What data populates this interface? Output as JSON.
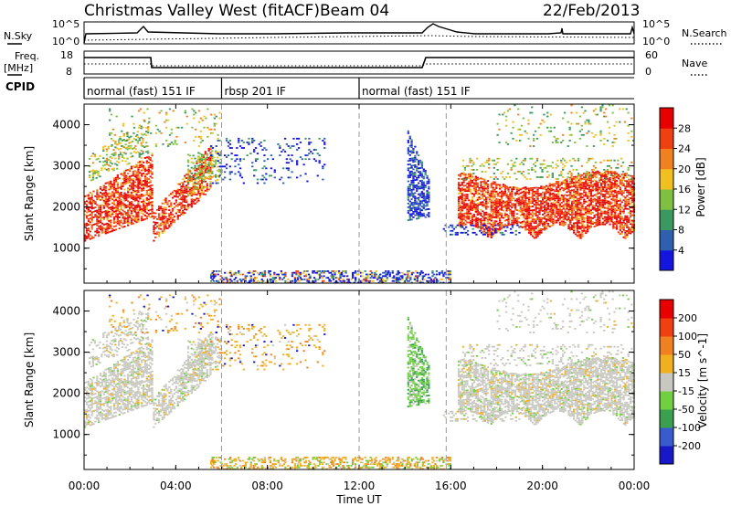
{
  "header": {
    "title": "Christmas Valley West (fitACF)",
    "beam": "Beam 04",
    "date": "22/Feb/2013"
  },
  "panels": {
    "nsky_label": "N.Sky",
    "nsky_ticks": [
      "10^5",
      "10^0"
    ],
    "nsearch_label": "N.Search",
    "nsearch_ticks": [
      "10^5",
      "10^0"
    ],
    "freq_label_1": "Freq.",
    "freq_label_2": "[MHz]",
    "freq_ticks": [
      "18",
      "8"
    ],
    "nave_label": "Nave",
    "nave_ticks": [
      "60",
      "0"
    ],
    "cpid_label": "CPID",
    "cpid_modes": [
      {
        "label": "normal (fast) 151 IF",
        "start_h": 0,
        "end_h": 6
      },
      {
        "label": "rbsp 201 IF",
        "start_h": 6,
        "end_h": 12
      },
      {
        "label": "normal (fast) 151 IF",
        "start_h": 12,
        "end_h": 24
      }
    ]
  },
  "chart_data": [
    {
      "type": "heatmap",
      "name": "power",
      "ylabel": "Slant Range [km]",
      "yticks": [
        "1000",
        "2000",
        "3000",
        "4000"
      ],
      "ylim": [
        150,
        4500
      ],
      "colorbar_label": "Power [dB]",
      "colorbar_ticks": [
        "4",
        "8",
        "12",
        "16",
        "20",
        "24",
        "28"
      ],
      "colorbar_colors": [
        "#1515e0",
        "#2f60b0",
        "#3a9860",
        "#80c040",
        "#f0c020",
        "#f08020",
        "#f04010",
        "#e80000"
      ]
    },
    {
      "type": "heatmap",
      "name": "velocity",
      "ylabel": "Slant Range [km]",
      "yticks": [
        "1000",
        "2000",
        "3000",
        "4000"
      ],
      "ylim": [
        150,
        4500
      ],
      "colorbar_label": "Velocity [m s^-1]",
      "colorbar_ticks": [
        "200",
        "100",
        "50",
        "15",
        "-15",
        "-50",
        "-100",
        "-200"
      ],
      "colorbar_colors": [
        "#1818c8",
        "#3a5ad0",
        "#3aa050",
        "#70d040",
        "#c8c8c0",
        "#f0b020",
        "#f08020",
        "#f04010",
        "#e80000"
      ]
    }
  ],
  "xaxis": {
    "label": "Time UT",
    "ticks": [
      "00:00",
      "04:00",
      "08:00",
      "12:00",
      "16:00",
      "20:00",
      "00:00"
    ],
    "range_h": [
      0,
      24
    ]
  }
}
